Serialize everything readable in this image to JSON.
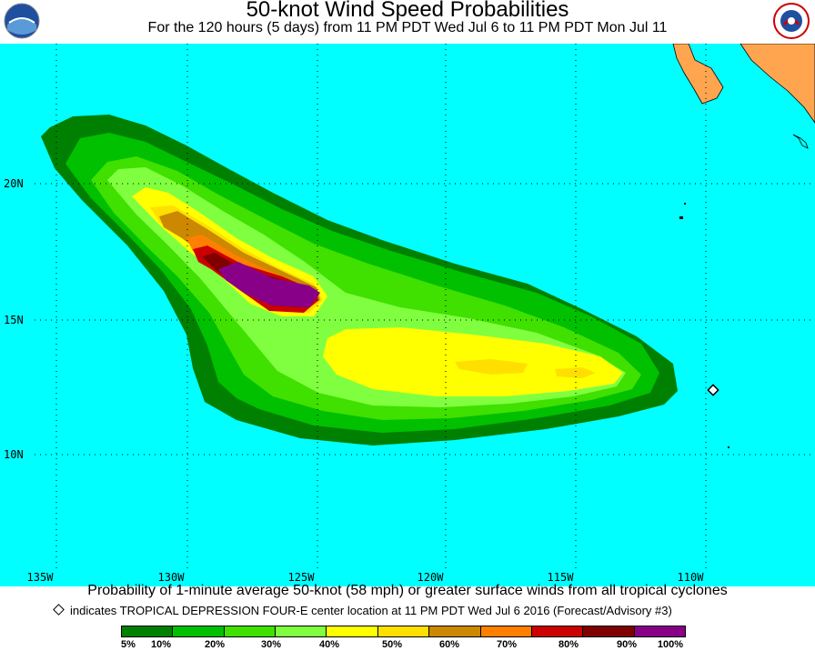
{
  "header": {
    "title": "50-knot Wind Speed Probabilities",
    "subtitle": "For the 120 hours (5 days) from 11 PM PDT Wed Jul 6 to 11 PM PDT Mon Jul 11",
    "left_logo_text": "NOAA",
    "right_logo_text": "NATIONAL WEATHER SERVICE"
  },
  "map": {
    "ocean_color": "#00ffff",
    "land_color": "#ffa54f",
    "latitude_labels": [
      "20N",
      "15N",
      "10N"
    ],
    "longitude_labels": [
      "135W",
      "130W",
      "125W",
      "120W",
      "115W",
      "110W"
    ]
  },
  "footer": {
    "caption": "Probability of 1-minute average 50-knot (58 mph) or greater surface winds from all tropical cyclones",
    "note": "indicates TROPICAL DEPRESSION FOUR-E center location at 11 PM PDT Wed Jul 6 2016 (Forecast/Advisory #3)"
  },
  "legend": {
    "colors": [
      "#008000",
      "#00c000",
      "#40e000",
      "#80ff40",
      "#ffff00",
      "#ffdf00",
      "#cc8800",
      "#ff8000",
      "#cc0000",
      "#800000",
      "#880088"
    ],
    "labels": [
      "5%",
      "10%",
      "20%",
      "30%",
      "40%",
      "50%",
      "60%",
      "70%",
      "80%",
      "90%",
      "100%"
    ]
  }
}
